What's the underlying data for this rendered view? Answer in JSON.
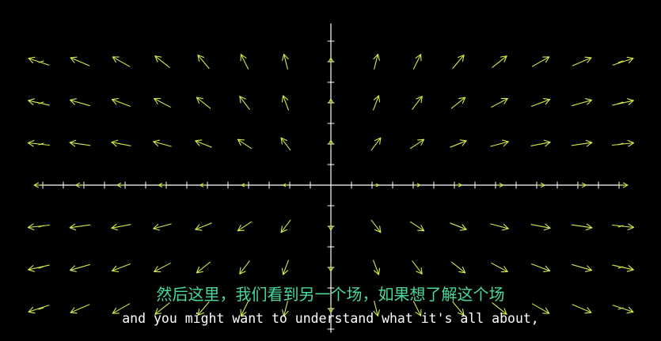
{
  "video": {
    "subtitle_chinese": "然后这里，我们看到另一个场，如果想了解这个场",
    "subtitle_english": "and you might want to understand what it's all about,"
  },
  "field": {
    "description_color": "#d8e84a",
    "axis_color": "#ffffff",
    "tick_color": "#d8e84a"
  }
}
